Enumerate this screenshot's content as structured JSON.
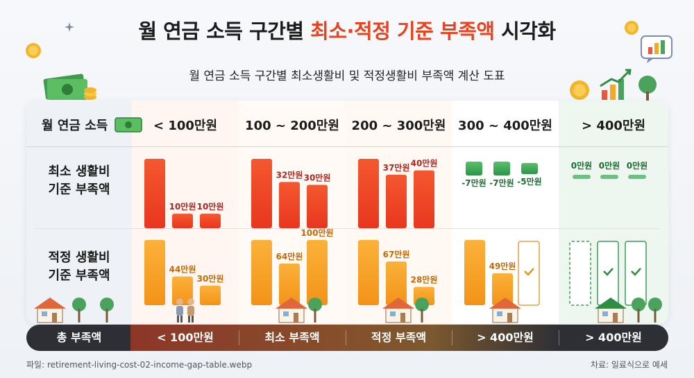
{
  "title": {
    "pre": "월 연금 소득 구간별 ",
    "highlight": "최소·적정 기준 부족액",
    "post": " 시각화"
  },
  "subtitle": "월 연금 소득 구간별 최소생활비 및 적정생활비 부족액 계산 도표",
  "table": {
    "row_header": "월 연금 소득",
    "columns": [
      "< 100만원",
      "100 ~ 200만원",
      "200 ~ 300만원",
      "300 ~ 400만원",
      "> 400만원"
    ],
    "row_min": "최소 생활비\n기준 부족액",
    "row_ideal": "적정 생활비\n기준 부족액"
  },
  "chart_data": {
    "type": "bar",
    "categories": [
      "< 100만원",
      "100 ~ 200만원",
      "200 ~ 300만원",
      "300 ~ 400만원",
      "> 400만원"
    ],
    "series": [
      {
        "name": "최소 생활비 기준 부족액",
        "labels": [
          [
            "",
            "10만원",
            "10만원"
          ],
          [
            "",
            "32만원",
            "30만원"
          ],
          [
            "",
            "37만원",
            "40만원"
          ],
          [
            "-7만원",
            "-7만원",
            "-5만원"
          ],
          [
            "0만원",
            "0만원",
            "0만원"
          ]
        ],
        "values": [
          [
            null,
            10,
            10
          ],
          [
            null,
            32,
            30
          ],
          [
            null,
            37,
            40
          ],
          [
            -7,
            -7,
            -5
          ],
          [
            0,
            0,
            0
          ]
        ]
      },
      {
        "name": "적정 생활비 기준 부족액",
        "labels": [
          [
            "",
            "44만원",
            "30만원"
          ],
          [
            "",
            "64만원",
            "100만원"
          ],
          [
            "",
            "67만원",
            "28만원"
          ],
          [
            "",
            "49만원",
            ""
          ],
          [
            "",
            "",
            ""
          ]
        ],
        "values": [
          [
            null,
            44,
            30
          ],
          [
            null,
            64,
            100
          ],
          [
            null,
            67,
            28
          ],
          [
            null,
            49,
            0
          ],
          [
            0,
            0,
            0
          ]
        ]
      }
    ]
  },
  "bottom": {
    "label": "총 부족액",
    "segments": [
      "< 100만원",
      "최소 부족액",
      "적정 부족액",
      "> 400만원",
      "> 400만원"
    ]
  },
  "footer": {
    "file": "파일: retirement-living-cost-02-income-gap-table.webp",
    "source": "차료: 일료식으로 예세"
  },
  "colors": {
    "red": "#f0462a",
    "orange": "#f5a21e",
    "green": "#3aa05a",
    "highlight": "#e8431f"
  }
}
